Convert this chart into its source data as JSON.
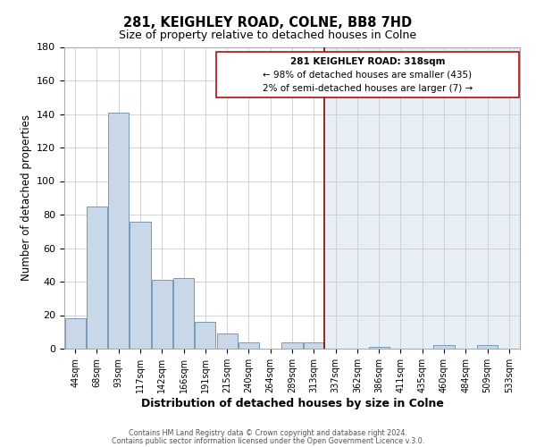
{
  "title": "281, KEIGHLEY ROAD, COLNE, BB8 7HD",
  "subtitle": "Size of property relative to detached houses in Colne",
  "xlabel": "Distribution of detached houses by size in Colne",
  "ylabel": "Number of detached properties",
  "bar_labels": [
    "44sqm",
    "68sqm",
    "93sqm",
    "117sqm",
    "142sqm",
    "166sqm",
    "191sqm",
    "215sqm",
    "240sqm",
    "264sqm",
    "289sqm",
    "313sqm",
    "337sqm",
    "362sqm",
    "386sqm",
    "411sqm",
    "435sqm",
    "460sqm",
    "484sqm",
    "509sqm",
    "533sqm"
  ],
  "bar_values": [
    18,
    85,
    141,
    76,
    41,
    42,
    16,
    9,
    4,
    0,
    4,
    4,
    0,
    0,
    1,
    0,
    0,
    2,
    0,
    2,
    0
  ],
  "bar_color": "#c8d8e8",
  "bar_edge_color": "#7799bb",
  "highlight_line_color": "#8b0000",
  "highlight_box_text_line1": "281 KEIGHLEY ROAD: 318sqm",
  "highlight_box_text_line2": "← 98% of detached houses are smaller (435)",
  "highlight_box_text_line3": "2% of semi-detached houses are larger (7) →",
  "right_bg_color": "#e8eef5",
  "ylim": [
    0,
    180
  ],
  "yticks": [
    0,
    20,
    40,
    60,
    80,
    100,
    120,
    140,
    160,
    180
  ],
  "footer_line1": "Contains HM Land Registry data © Crown copyright and database right 2024.",
  "footer_line2": "Contains public sector information licensed under the Open Government Licence v.3.0."
}
